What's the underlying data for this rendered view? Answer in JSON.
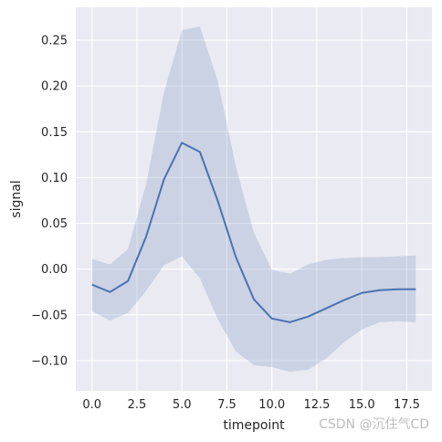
{
  "chart_data": {
    "type": "line",
    "xlabel": "timepoint",
    "ylabel": "signal",
    "xlim": [
      -0.9,
      18.9
    ],
    "ylim": [
      -0.133,
      0.286
    ],
    "x_ticks": [
      0.0,
      2.5,
      5.0,
      7.5,
      10.0,
      12.5,
      15.0,
      17.5
    ],
    "x_tick_labels": [
      "0.0",
      "2.5",
      "5.0",
      "7.5",
      "10.0",
      "12.5",
      "15.0",
      "17.5"
    ],
    "y_ticks": [
      -0.1,
      -0.05,
      0.0,
      0.05,
      0.1,
      0.15,
      0.2,
      0.25
    ],
    "y_tick_labels": [
      "−0.10",
      "−0.05",
      "0.00",
      "0.05",
      "0.10",
      "0.15",
      "0.20",
      "0.25"
    ],
    "grid": true,
    "series": [
      {
        "x": [
          0,
          1,
          2,
          3,
          4,
          5,
          6,
          7,
          8,
          9,
          10,
          11,
          12,
          13,
          14,
          15,
          16,
          17,
          18
        ],
        "y": [
          -0.017,
          -0.025,
          -0.013,
          0.035,
          0.098,
          0.138,
          0.128,
          0.074,
          0.013,
          -0.033,
          -0.054,
          -0.058,
          -0.052,
          -0.043,
          -0.034,
          -0.026,
          -0.023,
          -0.022,
          -0.022
        ],
        "ci_lower": [
          -0.046,
          -0.056,
          -0.048,
          -0.024,
          0.004,
          0.014,
          -0.01,
          -0.055,
          -0.09,
          -0.105,
          -0.107,
          -0.112,
          -0.11,
          -0.098,
          -0.08,
          -0.066,
          -0.058,
          -0.057,
          -0.058
        ],
        "ci_upper": [
          0.011,
          0.005,
          0.022,
          0.092,
          0.193,
          0.261,
          0.265,
          0.205,
          0.112,
          0.04,
          -0.001,
          -0.005,
          0.005,
          0.01,
          0.012,
          0.013,
          0.013,
          0.014,
          0.015
        ]
      }
    ],
    "colors": {
      "background": "#eaeaf2",
      "grid": "#ffffff",
      "line": "#4c72b0",
      "band": "#4c72b0"
    }
  },
  "watermark": "CSDN @沉住气CD"
}
